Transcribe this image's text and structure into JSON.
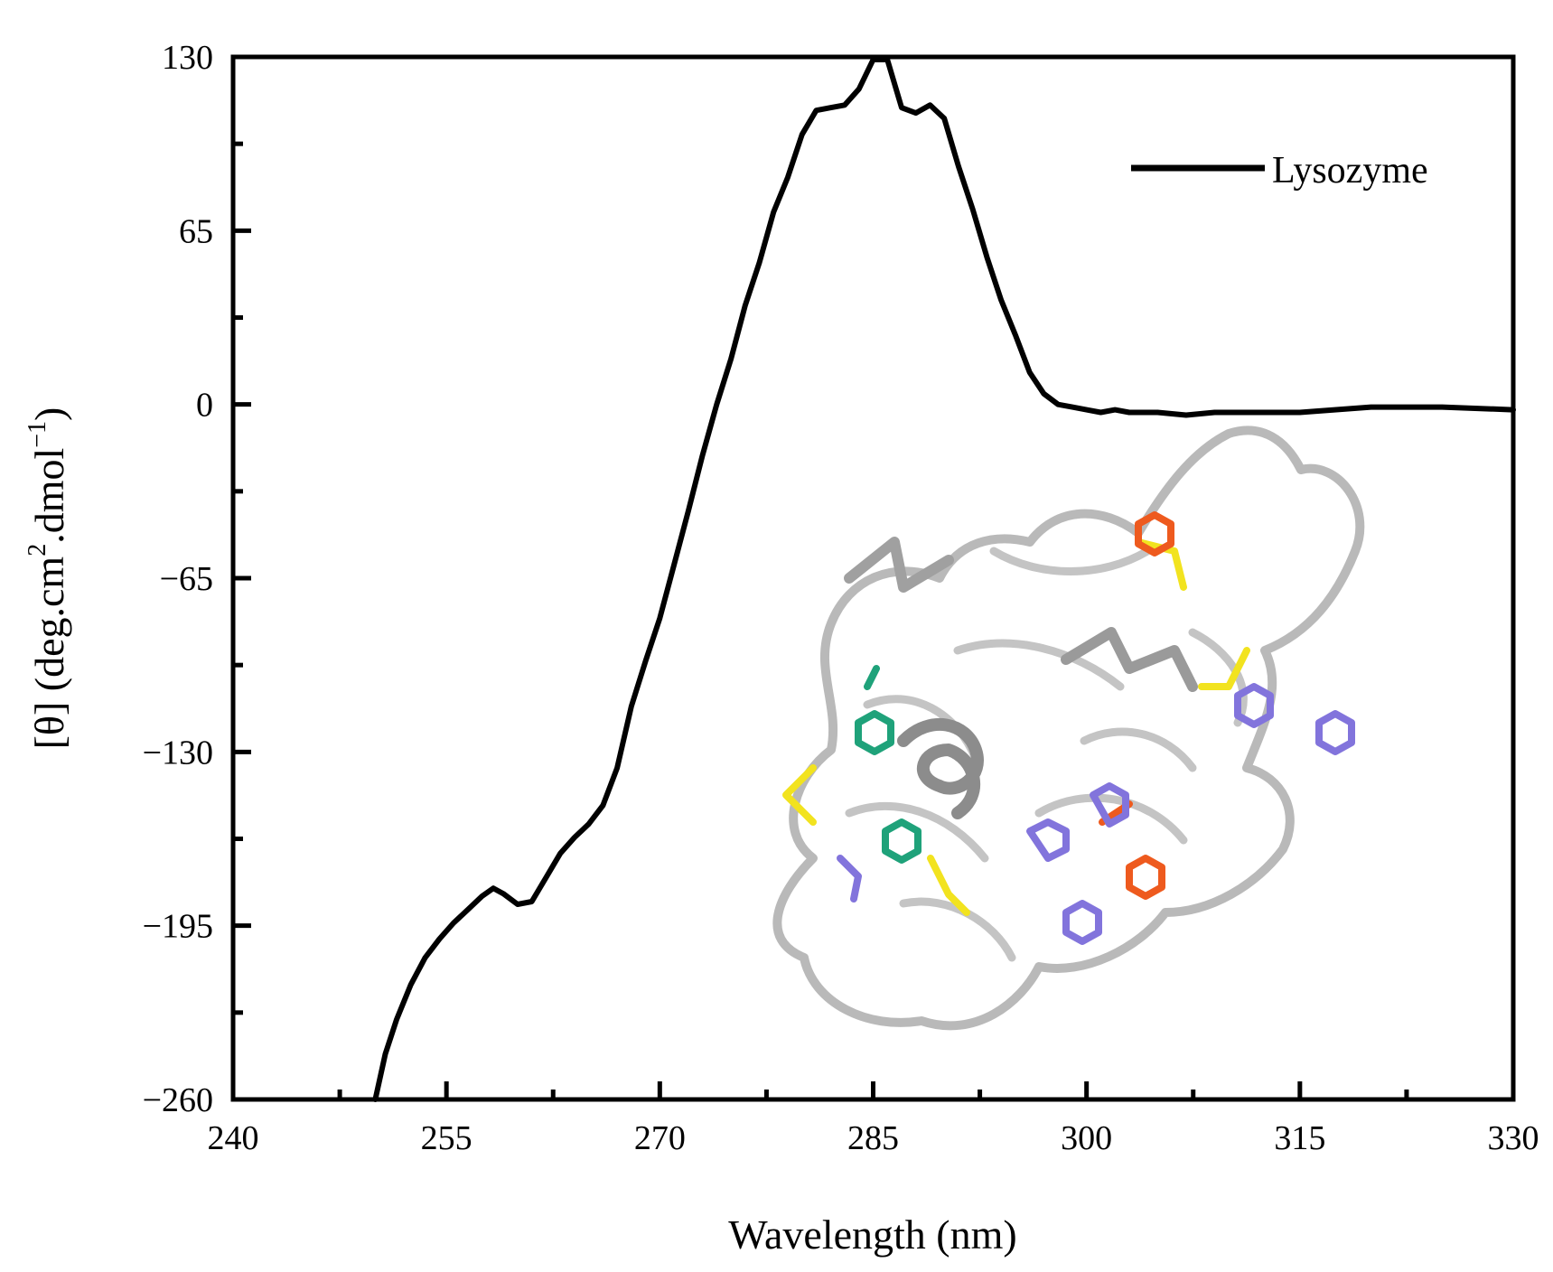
{
  "chart_data": {
    "type": "line",
    "title": "",
    "xlabel": "Wavelength (nm)",
    "ylabel": {
      "prefix": "[θ] (deg.cm",
      "sup1": "2",
      "middle": ".dmol",
      "sup2": "−1",
      "suffix": ")"
    },
    "xlim": [
      240,
      330
    ],
    "ylim": [
      -260,
      130
    ],
    "xticks": [
      240,
      255,
      270,
      285,
      300,
      315,
      330
    ],
    "xtick_labels": [
      "240",
      "255",
      "270",
      "285",
      "300",
      "315",
      "330"
    ],
    "yticks": [
      130,
      65,
      0,
      -65,
      -130,
      -195,
      -260
    ],
    "ytick_labels": [
      "130",
      "65",
      "0",
      "−65",
      "−130",
      "−195",
      "−260"
    ],
    "grid": false,
    "legend_position": "top-right",
    "series": [
      {
        "name": "Lysozyme",
        "color": "#000000",
        "x": [
          250.0,
          250.7,
          251.5,
          252.5,
          253.5,
          254.5,
          255.5,
          256.5,
          257.5,
          258.3,
          259.0,
          260.0,
          261.0,
          262.0,
          263.0,
          264.0,
          265.0,
          266.0,
          267.0,
          268.0,
          269.0,
          270.0,
          271.0,
          272.0,
          273.0,
          274.0,
          275.0,
          276.0,
          277.0,
          278.0,
          279.0,
          280.0,
          281.0,
          282.0,
          283.0,
          284.0,
          285.0,
          286.0,
          287.0,
          288.0,
          289.0,
          290.0,
          291.0,
          292.0,
          293.0,
          294.0,
          295.0,
          296.0,
          297.0,
          298.0,
          299.0,
          300.0,
          301.0,
          302.0,
          303.0,
          305.0,
          307.0,
          309.0,
          311.0,
          315.0,
          320.0,
          325.0,
          330.0
        ],
        "y": [
          -260,
          -243,
          -230,
          -217,
          -207,
          -200,
          -194,
          -189,
          -184,
          -181,
          -183,
          -187,
          -186,
          -177,
          -168,
          -162,
          -157,
          -150,
          -136,
          -113,
          -96,
          -80,
          -60,
          -40,
          -19,
          0,
          17,
          37,
          53,
          72,
          85,
          101,
          110,
          111,
          112,
          118,
          129,
          129,
          111,
          109,
          112,
          107,
          89,
          73,
          55,
          39,
          26,
          12,
          4,
          0,
          -1,
          -2,
          -3,
          -2,
          -3,
          -3,
          -4,
          -3,
          -3,
          -3,
          -1,
          -1,
          -2
        ]
      }
    ]
  }
}
